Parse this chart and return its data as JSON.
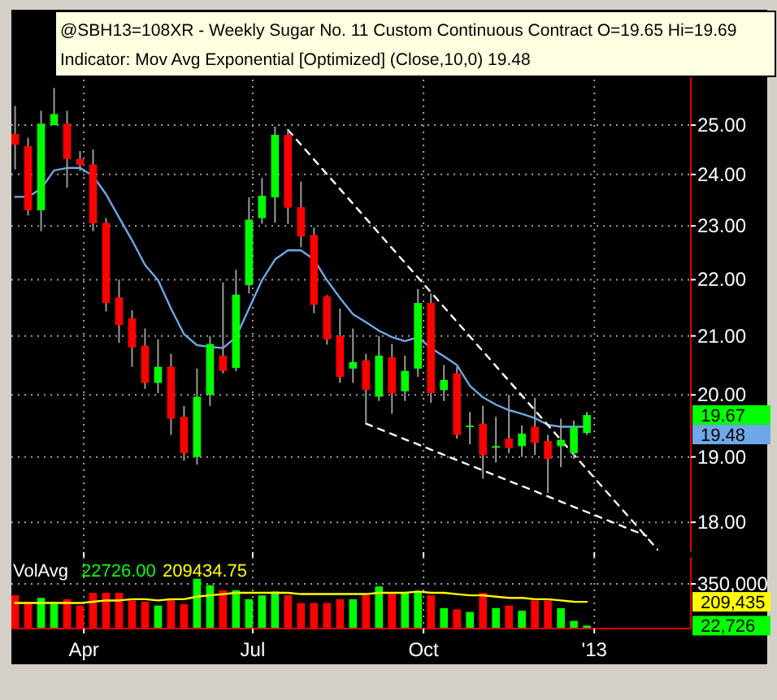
{
  "chart_data": [
    {
      "type": "candlestick",
      "title": "@SBH13=108XR - Weekly   Sugar No. 11 Custom Continuous Contract   O=19.65   Hi=19.69",
      "subtitle": "Indicator: Mov Avg Exponential [Optimized] (Close,10,0)  19.48",
      "x": [
        "2012-02-24",
        "2012-03-02",
        "2012-03-09",
        "2012-03-16",
        "2012-03-23",
        "2012-03-30",
        "2012-04-06",
        "2012-04-13",
        "2012-04-20",
        "2012-04-27",
        "2012-05-04",
        "2012-05-11",
        "2012-05-18",
        "2012-05-25",
        "2012-06-01",
        "2012-06-08",
        "2012-06-15",
        "2012-06-22",
        "2012-06-29",
        "2012-07-06",
        "2012-07-13",
        "2012-07-20",
        "2012-07-27",
        "2012-08-03",
        "2012-08-10",
        "2012-08-17",
        "2012-08-24",
        "2012-08-31",
        "2012-09-07",
        "2012-09-14",
        "2012-09-21",
        "2012-09-28",
        "2012-10-05",
        "2012-10-12",
        "2012-10-19",
        "2012-10-26",
        "2012-11-02",
        "2012-11-09",
        "2012-11-16",
        "2012-11-23",
        "2012-11-30",
        "2012-12-07",
        "2012-12-14",
        "2012-12-21",
        "2012-12-28"
      ],
      "ohlc": [
        [
          24.82,
          25.4,
          24.1,
          24.6
        ],
        [
          24.57,
          24.74,
          23.2,
          23.3
        ],
        [
          23.3,
          25.3,
          22.9,
          25.03
        ],
        [
          25.0,
          25.78,
          25.0,
          25.23
        ],
        [
          25.03,
          25.3,
          23.74,
          24.31
        ],
        [
          24.31,
          24.47,
          24.07,
          24.19
        ],
        [
          24.2,
          24.5,
          22.9,
          23.05
        ],
        [
          23.06,
          23.15,
          21.43,
          21.58
        ],
        [
          21.68,
          22.0,
          20.88,
          21.19
        ],
        [
          21.31,
          21.45,
          20.47,
          20.8
        ],
        [
          20.83,
          21.13,
          20.1,
          20.2
        ],
        [
          20.2,
          20.94,
          20.03,
          20.47
        ],
        [
          20.47,
          20.69,
          19.35,
          19.61
        ],
        [
          19.64,
          19.82,
          18.94,
          19.06
        ],
        [
          19.0,
          20.44,
          18.88,
          19.97
        ],
        [
          20.0,
          21.0,
          19.82,
          20.86
        ],
        [
          20.66,
          21.95,
          20.36,
          20.4
        ],
        [
          20.45,
          22.18,
          20.4,
          21.73
        ],
        [
          21.9,
          23.55,
          21.75,
          23.12
        ],
        [
          23.15,
          23.93,
          23.04,
          23.58
        ],
        [
          23.55,
          24.97,
          23.06,
          24.8
        ],
        [
          24.8,
          24.9,
          23.04,
          23.35
        ],
        [
          23.36,
          23.86,
          22.6,
          22.8
        ],
        [
          22.83,
          22.97,
          21.4,
          21.55
        ],
        [
          21.7,
          21.72,
          20.85,
          20.94
        ],
        [
          21.0,
          21.48,
          20.2,
          20.3
        ],
        [
          20.44,
          21.13,
          20.2,
          20.55
        ],
        [
          20.58,
          20.69,
          19.53,
          20.08
        ],
        [
          19.97,
          21.0,
          19.9,
          20.66
        ],
        [
          20.63,
          20.86,
          19.69,
          20.03
        ],
        [
          20.06,
          20.66,
          19.9,
          20.4
        ],
        [
          20.44,
          21.83,
          20.3,
          21.58
        ],
        [
          21.58,
          21.75,
          19.87,
          20.03
        ],
        [
          20.08,
          20.5,
          19.9,
          20.25
        ],
        [
          20.36,
          20.47,
          19.29,
          19.35
        ],
        [
          19.48,
          19.72,
          19.2,
          19.5
        ],
        [
          19.53,
          19.82,
          18.66,
          19.03
        ],
        [
          19.15,
          19.64,
          18.91,
          19.17
        ],
        [
          19.29,
          20.0,
          19.06,
          19.14
        ],
        [
          19.17,
          19.5,
          19.0,
          19.37
        ],
        [
          19.48,
          19.95,
          19.03,
          19.22
        ],
        [
          19.25,
          19.35,
          18.44,
          18.97
        ],
        [
          19.17,
          19.61,
          18.84,
          19.27
        ],
        [
          19.06,
          19.58,
          18.97,
          19.48
        ],
        [
          19.38,
          19.72,
          19.35,
          19.67
        ]
      ],
      "colors": [
        "#ff0000",
        "#ff0000",
        "#00ff00",
        "#00ff00",
        "#ff0000",
        "#ff0000",
        "#ff0000",
        "#ff0000",
        "#ff0000",
        "#ff0000",
        "#ff0000",
        "#00ff00",
        "#ff0000",
        "#ff0000",
        "#00ff00",
        "#00ff00",
        "#ff0000",
        "#00ff00",
        "#00ff00",
        "#00ff00",
        "#00ff00",
        "#ff0000",
        "#ff0000",
        "#ff0000",
        "#ff0000",
        "#ff0000",
        "#00ff00",
        "#ff0000",
        "#00ff00",
        "#ff0000",
        "#00ff00",
        "#00ff00",
        "#ff0000",
        "#00ff00",
        "#ff0000",
        "#00ff00",
        "#ff0000",
        "#00ff00",
        "#ff0000",
        "#00ff00",
        "#ff0000",
        "#ff0000",
        "#00ff00",
        "#00ff00",
        "#00ff00"
      ],
      "series": [
        {
          "type": "line",
          "color": "#6fa8e8",
          "values": [
            23.56,
            23.56,
            23.72,
            24.08,
            24.13,
            24.13,
            23.97,
            23.61,
            23.16,
            22.73,
            22.27,
            21.99,
            21.48,
            21.03,
            20.84,
            20.81,
            20.79,
            20.98,
            21.48,
            21.99,
            22.37,
            22.54,
            22.54,
            22.37,
            21.99,
            21.67,
            21.38,
            21.24,
            21.09,
            20.98,
            20.91,
            20.98,
            20.79,
            20.65,
            20.5,
            20.15,
            19.96,
            19.84,
            19.75,
            19.69,
            19.62,
            19.51,
            19.48,
            19.48,
            19.48
          ]
        },
        {
          "type": "line",
          "color": "#ffffff",
          "line_style": "dashed",
          "x": [
            "2012-07-20",
            "2013-02-04"
          ],
          "values": [
            24.9,
            17.6
          ]
        },
        {
          "type": "line",
          "color": "#ffffff",
          "line_style": "dashed",
          "x": [
            "2012-08-31",
            "2013-01-29"
          ],
          "values": [
            19.53,
            17.8
          ]
        }
      ],
      "annotations": [
        "19.67",
        "19.48"
      ],
      "xlim": [
        "2012-02-22",
        "2013-02-22"
      ],
      "xticks": [
        {
          "value": "2012-04-01",
          "label": null
        },
        {
          "value": "2012-07-01",
          "label": null
        },
        {
          "value": "2012-10-01",
          "label": null
        },
        {
          "value": "2013-01-01",
          "label": null
        }
      ],
      "ylim": [
        17.56,
        27.1
      ],
      "yticks": [
        {
          "value": 18,
          "label": "18.00"
        },
        {
          "value": 19,
          "label": "19.00"
        },
        {
          "value": 20,
          "label": "20.00"
        },
        {
          "value": 21,
          "label": "21.00"
        },
        {
          "value": 22,
          "label": "22.00"
        },
        {
          "value": 23,
          "label": "23.00"
        },
        {
          "value": 24,
          "label": "24.00"
        },
        {
          "value": 25,
          "label": "25.00"
        }
      ],
      "log": true,
      "grid": true,
      "tick_labels": "y"
    },
    {
      "type": "bar",
      "title": "VolAvg",
      "x": [
        "2012-02-24",
        "2012-03-02",
        "2012-03-09",
        "2012-03-16",
        "2012-03-23",
        "2012-03-30",
        "2012-04-06",
        "2012-04-13",
        "2012-04-20",
        "2012-04-27",
        "2012-05-04",
        "2012-05-11",
        "2012-05-18",
        "2012-05-25",
        "2012-06-01",
        "2012-06-08",
        "2012-06-15",
        "2012-06-22",
        "2012-06-29",
        "2012-07-06",
        "2012-07-13",
        "2012-07-20",
        "2012-07-27",
        "2012-08-03",
        "2012-08-10",
        "2012-08-17",
        "2012-08-24",
        "2012-08-31",
        "2012-09-07",
        "2012-09-14",
        "2012-09-21",
        "2012-09-28",
        "2012-10-05",
        "2012-10-12",
        "2012-10-19",
        "2012-10-26",
        "2012-11-02",
        "2012-11-09",
        "2012-11-16",
        "2012-11-23",
        "2012-11-30",
        "2012-12-07",
        "2012-12-14",
        "2012-12-21",
        "2012-12-28"
      ],
      "series": [
        {
          "type": "bar",
          "colors": [
            "#ff0000",
            "#ff0000",
            "#00ff00",
            "#00ff00",
            "#ff0000",
            "#ff0000",
            "#ff0000",
            "#ff0000",
            "#ff0000",
            "#ff0000",
            "#ff0000",
            "#00ff00",
            "#ff0000",
            "#ff0000",
            "#00ff00",
            "#00ff00",
            "#ff0000",
            "#00ff00",
            "#00ff00",
            "#00ff00",
            "#00ff00",
            "#ff0000",
            "#ff0000",
            "#ff0000",
            "#ff0000",
            "#ff0000",
            "#00ff00",
            "#ff0000",
            "#00ff00",
            "#ff0000",
            "#00ff00",
            "#00ff00",
            "#ff0000",
            "#00ff00",
            "#ff0000",
            "#00ff00",
            "#ff0000",
            "#00ff00",
            "#ff0000",
            "#00ff00",
            "#ff0000",
            "#ff0000",
            "#00ff00",
            "#00ff00",
            "#00ff00"
          ],
          "values": [
            260000,
            210000,
            240000,
            210000,
            230000,
            180000,
            280000,
            280000,
            280000,
            220000,
            210000,
            180000,
            230000,
            190000,
            390000,
            340000,
            300000,
            300000,
            230000,
            260000,
            290000,
            260000,
            200000,
            200000,
            200000,
            230000,
            230000,
            260000,
            330000,
            280000,
            280000,
            290000,
            260000,
            160000,
            150000,
            130000,
            280000,
            160000,
            180000,
            140000,
            220000,
            220000,
            160000,
            60000,
            22726
          ]
        },
        {
          "type": "line",
          "color": "#ffff00",
          "values": [
            200000,
            200000,
            200000,
            200000,
            200000,
            200000,
            210000,
            220000,
            220000,
            230000,
            230000,
            220000,
            230000,
            230000,
            250000,
            260000,
            270000,
            280000,
            280000,
            280000,
            280000,
            280000,
            270000,
            270000,
            270000,
            270000,
            270000,
            270000,
            280000,
            280000,
            280000,
            290000,
            280000,
            280000,
            270000,
            260000,
            260000,
            250000,
            240000,
            240000,
            230000,
            230000,
            220000,
            210000,
            209435
          ]
        }
      ],
      "annotations": [
        "22726.00",
        "209434.75",
        "22,726",
        "209,435"
      ],
      "xlim": [
        "2012-02-22",
        "2013-02-22"
      ],
      "xticks": [
        {
          "value": "2012-04-01",
          "label": "Apr"
        },
        {
          "value": "2012-07-01",
          "label": "Jul"
        },
        {
          "value": "2012-10-01",
          "label": "Oct"
        },
        {
          "value": "2013-01-01",
          "label": "'13"
        }
      ],
      "ylim": [
        0,
        560000
      ],
      "yticks": [
        {
          "value": 350000,
          "label": "350,000"
        }
      ],
      "grid": true
    }
  ]
}
